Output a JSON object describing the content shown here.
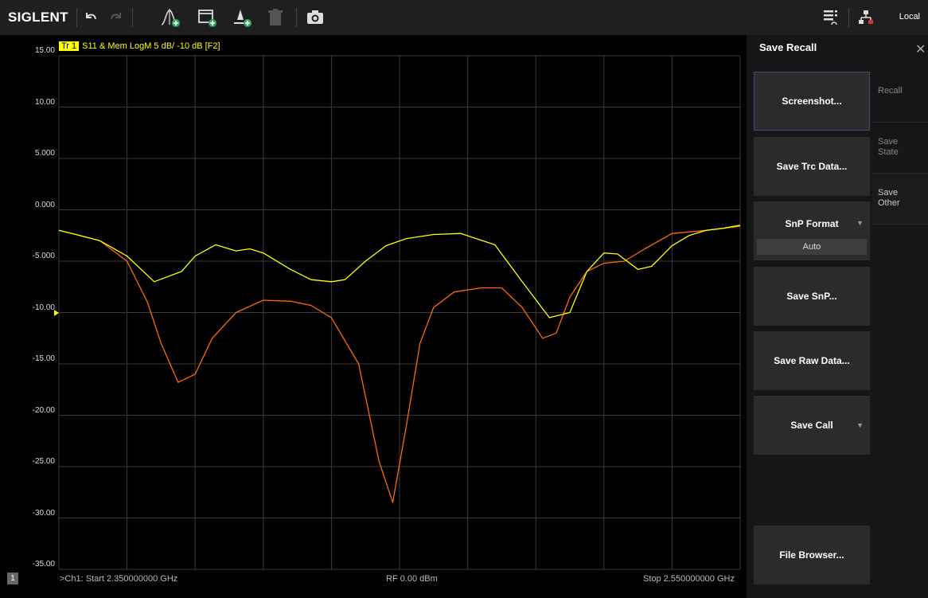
{
  "toolbar": {
    "brand": "SIGLENT",
    "icons": [
      "undo-icon",
      "redo-icon",
      "marker-add-icon",
      "window-add-icon",
      "trace-add-icon",
      "delete-icon",
      "camera-icon",
      "touch-menu-icon",
      "network-icon"
    ],
    "local_label": "Local"
  },
  "trace": {
    "badge": "Tr 1",
    "title": "S11 & Mem LogM 5 dB/ -10 dB [F2]",
    "channel_number": "1",
    "start": ">Ch1: Start 2.350000000 GHz",
    "power": "RF 0.00 dBm",
    "stop": "Stop 2.550000000 GHz",
    "y_ticks": [
      "15.00",
      "10.00",
      "5.000",
      "0.000",
      "-5.000",
      "-10.00",
      "-15.00",
      "-20.00",
      "-25.00",
      "-30.00",
      "-35.00"
    ],
    "colors": {
      "data": "#ffff00",
      "memory": "#ff6a00",
      "grid": "#3a3a3a"
    }
  },
  "panel": {
    "title": "Save Recall",
    "buttons": {
      "screenshot": "Screenshot...",
      "save_trc": "Save Trc Data...",
      "snp_format": "SnP Format",
      "snp_format_value": "Auto",
      "save_snp": "Save SnP...",
      "save_raw": "Save Raw Data...",
      "save_cal": "Save Call",
      "file_browser": "File Browser..."
    },
    "tabs": {
      "recall": "Recall",
      "save_state_1": "Save",
      "save_state_2": "State",
      "save_other_1": "Save",
      "save_other_2": "Other"
    }
  },
  "chart_data": {
    "type": "line",
    "x_range_ghz": [
      2.35,
      2.55
    ],
    "ylim": [
      -35,
      15
    ],
    "y_div": 5,
    "grid": true,
    "series": [
      {
        "name": "S11",
        "color": "#ffff00",
        "x": [
          2.35,
          2.355,
          2.362,
          2.37,
          2.378,
          2.386,
          2.39,
          2.396,
          2.402,
          2.406,
          2.41,
          2.418,
          2.424,
          2.43,
          2.434,
          2.44,
          2.446,
          2.452,
          2.46,
          2.468,
          2.478,
          2.486,
          2.494,
          2.5,
          2.505,
          2.51,
          2.514,
          2.52,
          2.524,
          2.53,
          2.535,
          2.54,
          2.545,
          2.55
        ],
        "y": [
          -2.0,
          -2.4,
          -3.0,
          -4.5,
          -7.0,
          -6.0,
          -4.5,
          -3.4,
          -4.0,
          -3.8,
          -4.2,
          -5.8,
          -6.8,
          -7.0,
          -6.8,
          -5.0,
          -3.5,
          -2.8,
          -2.4,
          -2.3,
          -3.4,
          -7.0,
          -10.5,
          -10.0,
          -6.0,
          -4.2,
          -4.3,
          -5.8,
          -5.5,
          -3.5,
          -2.5,
          -2.0,
          -1.8,
          -1.5
        ]
      },
      {
        "name": "Mem",
        "color": "#ff6a00",
        "x": [
          2.35,
          2.355,
          2.362,
          2.37,
          2.376,
          2.38,
          2.385,
          2.39,
          2.395,
          2.402,
          2.41,
          2.418,
          2.424,
          2.43,
          2.438,
          2.444,
          2.448,
          2.452,
          2.456,
          2.46,
          2.466,
          2.474,
          2.48,
          2.486,
          2.492,
          2.496,
          2.5,
          2.505,
          2.51,
          2.516,
          2.522,
          2.53,
          2.54,
          2.55
        ],
        "y": [
          -2.0,
          -2.4,
          -3.0,
          -5.0,
          -9.0,
          -13.0,
          -16.8,
          -16.0,
          -12.5,
          -10.0,
          -8.8,
          -8.9,
          -9.3,
          -10.5,
          -15.0,
          -24.5,
          -28.5,
          -21.0,
          -13.0,
          -9.5,
          -8.0,
          -7.6,
          -7.6,
          -9.5,
          -12.5,
          -12.0,
          -8.5,
          -6.0,
          -5.2,
          -5.0,
          -3.8,
          -2.3,
          -2.0,
          -1.6
        ]
      }
    ]
  }
}
